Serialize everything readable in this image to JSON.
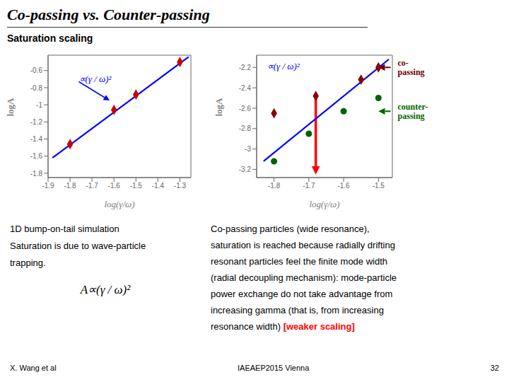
{
  "title": "Co-passing vs. Counter-passing",
  "subtitle": "Saturation scaling",
  "chart_data": [
    {
      "type": "scatter",
      "xlabel": "log(γ/ω)",
      "ylabel": "logA",
      "xlim": [
        -1.9,
        -1.25
      ],
      "ylim": [
        -1.85,
        -0.42
      ],
      "xticks": [
        -1.9,
        -1.8,
        -1.7,
        -1.6,
        -1.5,
        -1.4,
        -1.3
      ],
      "yticks": [
        -1.8,
        -1.6,
        -1.4,
        -1.2,
        -1,
        -0.8,
        -0.6
      ],
      "series": [
        {
          "type": "line",
          "color": "blue",
          "x": [
            -1.88,
            -1.26
          ],
          "values": [
            -1.62,
            -0.44
          ]
        },
        {
          "type": "scatter",
          "color": "#CC0000",
          "marker": "diamond",
          "x": [
            -1.8,
            -1.6,
            -1.5,
            -1.3
          ],
          "values": [
            -1.46,
            -1.06,
            -0.88,
            -0.5
          ]
        }
      ],
      "annotations": [
        {
          "text": "∝(γ / ω)²",
          "color": "blue",
          "x": -1.76,
          "y": -0.73,
          "arrow_to": [
            -1.62,
            -0.95
          ]
        }
      ]
    },
    {
      "type": "scatter",
      "xlabel": "log(γ/ω)",
      "ylabel": "logA",
      "xlim": [
        -1.85,
        -1.46
      ],
      "ylim": [
        -3.28,
        -2.08
      ],
      "xticks": [
        -1.8,
        -1.7,
        -1.6,
        -1.5
      ],
      "yticks": [
        -3.2,
        -3,
        -2.8,
        -2.6,
        -2.4,
        -2.2
      ],
      "series": [
        {
          "type": "line",
          "color": "blue",
          "x": [
            -1.83,
            -1.47
          ],
          "values": [
            -3.12,
            -2.12
          ]
        },
        {
          "type": "scatter",
          "color": "#8B0000",
          "marker": "diamond",
          "x": [
            -1.8,
            -1.68,
            -1.55,
            -1.5
          ],
          "values": [
            -2.65,
            -2.48,
            -2.32,
            -2.2
          ]
        },
        {
          "type": "scatter",
          "color": "#006400",
          "marker": "circle",
          "x": [
            -1.8,
            -1.7,
            -1.6,
            -1.5
          ],
          "values": [
            -3.12,
            -2.85,
            -2.63,
            -2.5
          ]
        }
      ],
      "annotations": [
        {
          "text": "∝(γ / ω)²",
          "color": "blue",
          "x": -1.82,
          "y": -2.22
        },
        {
          "color": "red",
          "arrow_from": [
            -1.68,
            -2.48
          ],
          "arrow_to": [
            -1.68,
            -3.25
          ]
        },
        {
          "text": "co-\npassing",
          "color": "#6B0000",
          "arrow_from": [
            -1.465,
            -2.2
          ],
          "arrow_to": [
            -1.5,
            -2.2
          ]
        },
        {
          "text": "counter-\npassing",
          "color": "#006400",
          "arrow_from": [
            -1.465,
            -2.63
          ],
          "arrow_to": [
            -1.5,
            -2.63
          ]
        }
      ]
    }
  ],
  "notes": {
    "left": [
      "1D bump-on-tail simulation",
      "Saturation is due to wave-particle",
      "trapping."
    ],
    "formula": "A∝(γ / ω)²",
    "right": "Co-passing particles (wide resonance),\nsaturation is reached because radially drifting\nresonant particles feel the finite mode width\n(radial decoupling mechanism): mode-particle\npower exchange do not take advantage from\nincreasing gamma (that is, from increasing\nresonance width) ",
    "right_end": {
      "text": "[weaker scaling]",
      "color": "red"
    }
  },
  "footer": [
    "X. Wang et al",
    "IAEAEP2015 Vienna",
    "32"
  ]
}
